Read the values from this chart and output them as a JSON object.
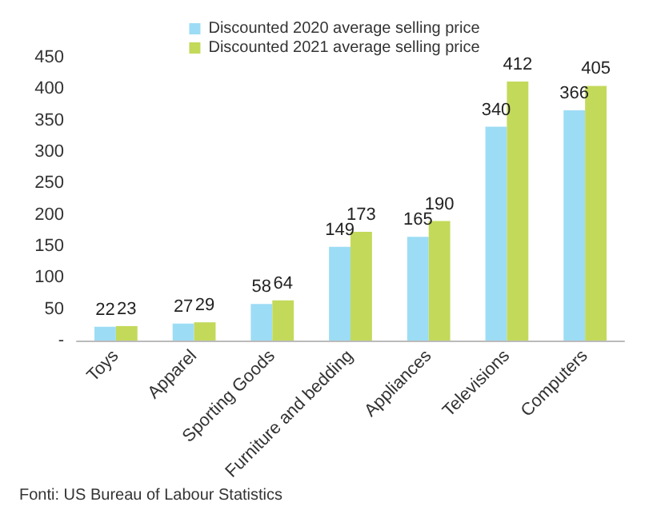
{
  "chart_data": {
    "type": "bar",
    "categories": [
      "Toys",
      "Apparel",
      "Sporting Goods",
      "Furniture and bedding",
      "Appliances",
      "Televisions",
      "Computers"
    ],
    "series": [
      {
        "name": "Discounted 2020 average selling price",
        "color": "#9ddcf5",
        "values": [
          22,
          27,
          58,
          149,
          165,
          340,
          366
        ]
      },
      {
        "name": "Discounted 2021 average selling price",
        "color": "#c3d95a",
        "values": [
          23,
          29,
          64,
          173,
          190,
          412,
          405
        ]
      }
    ],
    "ylim": [
      0,
      450
    ],
    "yticks": [
      {
        "value": 0,
        "label": "-"
      },
      50,
      100,
      150,
      200,
      250,
      300,
      350,
      400,
      450
    ],
    "data_labels": true,
    "grid": false,
    "legend": "top",
    "annotations": [
      "Fonti: US Bureau of Labour Statistics"
    ]
  }
}
